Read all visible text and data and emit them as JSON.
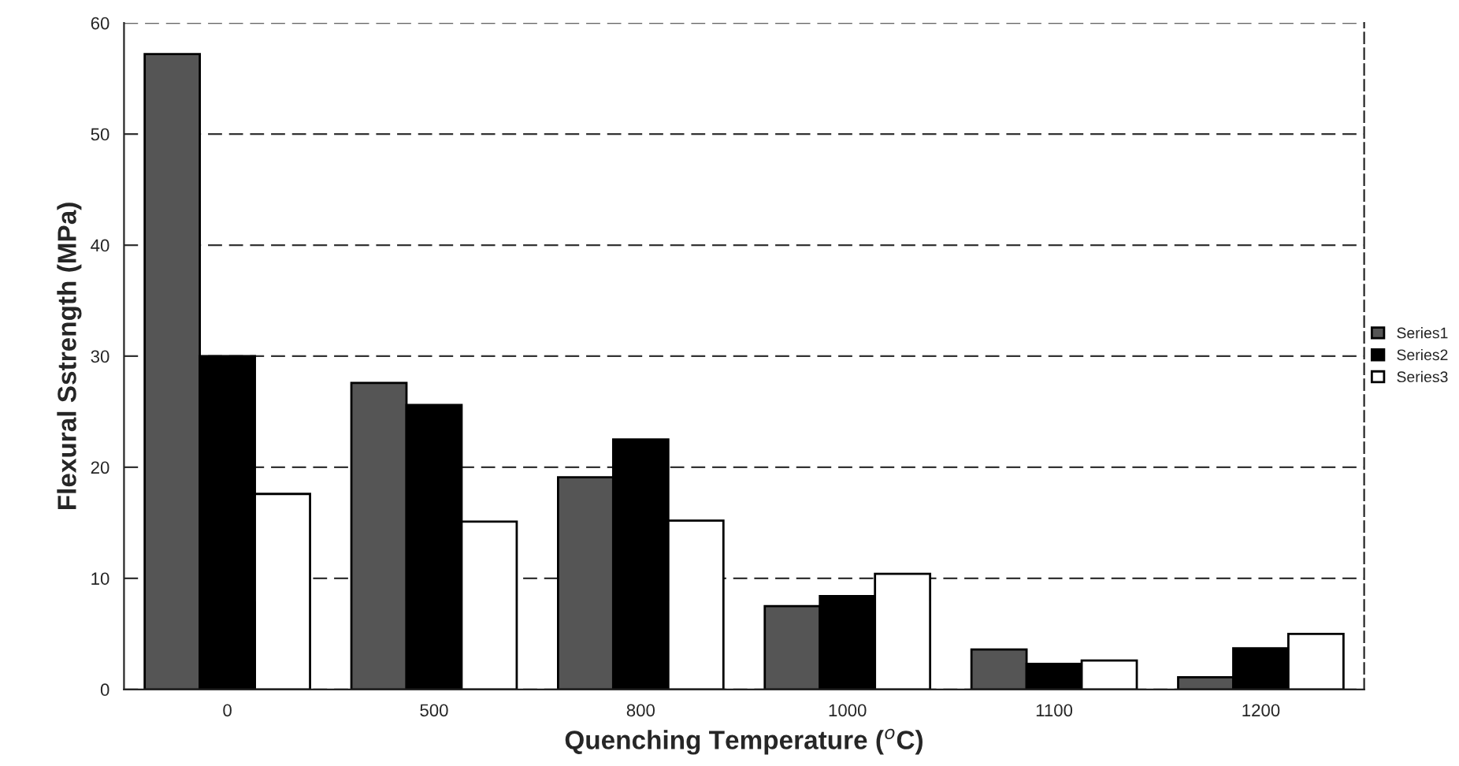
{
  "chart_data": {
    "type": "bar",
    "xlabel": "Quenching Temperature ($^{o}$C)",
    "ylabel": "Flexural Sstrength (MPa)",
    "categories": [
      "0",
      "500",
      "800",
      "1000",
      "1100",
      "1200"
    ],
    "series": [
      {
        "name": "Series1",
        "color": "#555555",
        "values": [
          57.2,
          27.6,
          19.1,
          7.5,
          3.6,
          1.1
        ]
      },
      {
        "name": "Series2",
        "color": "#000000",
        "values": [
          30,
          25.6,
          22.5,
          8.4,
          2.3,
          3.7
        ]
      },
      {
        "name": "Series3",
        "color": "#ffffff",
        "values": [
          17.6,
          15.1,
          15.2,
          10.4,
          2.6,
          5.0
        ]
      }
    ],
    "ylim": [
      0,
      60
    ],
    "yticks": [
      0,
      10,
      20,
      30,
      40,
      50,
      60
    ],
    "grid": "y",
    "legend": "right"
  }
}
